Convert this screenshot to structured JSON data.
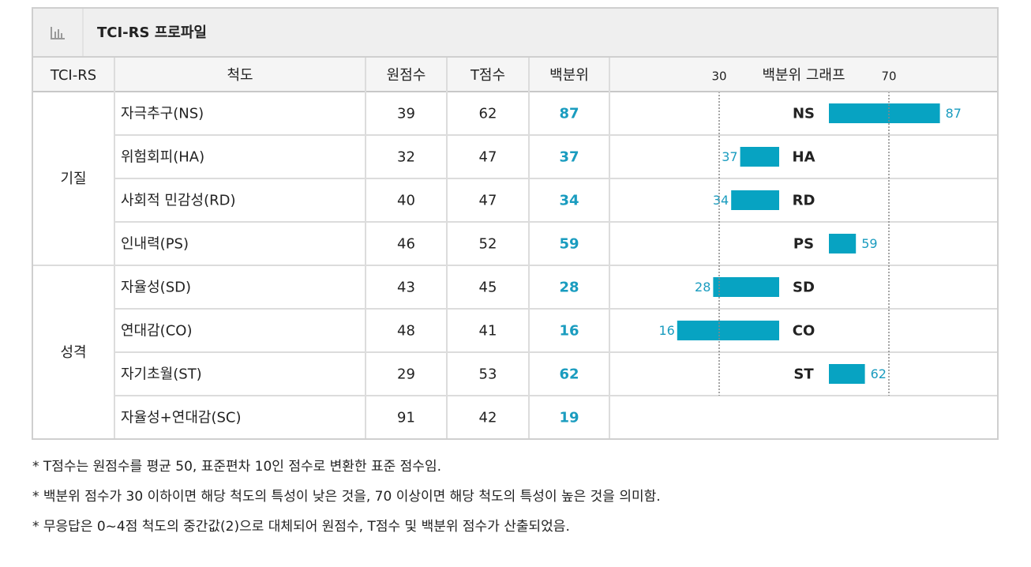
{
  "header": {
    "title": "TCI-RS 프로파일"
  },
  "table": {
    "columns": [
      "TCI-RS",
      "척도",
      "원점수",
      "T점수",
      "백분위",
      "백분위 그래프"
    ],
    "graph_ticks": [
      30,
      70
    ],
    "groups": [
      {
        "name": "기질",
        "rows": [
          {
            "scale": "자극추구(NS)",
            "code": "NS",
            "raw": 39,
            "t": 62,
            "percentile": 87
          },
          {
            "scale": "위험회피(HA)",
            "code": "HA",
            "raw": 32,
            "t": 47,
            "percentile": 37
          },
          {
            "scale": "사회적 민감성(RD)",
            "code": "RD",
            "raw": 40,
            "t": 47,
            "percentile": 34
          },
          {
            "scale": "인내력(PS)",
            "code": "PS",
            "raw": 46,
            "t": 52,
            "percentile": 59
          }
        ]
      },
      {
        "name": "성격",
        "rows": [
          {
            "scale": "자율성(SD)",
            "code": "SD",
            "raw": 43,
            "t": 45,
            "percentile": 28
          },
          {
            "scale": "연대감(CO)",
            "code": "CO",
            "raw": 48,
            "t": 41,
            "percentile": 16
          },
          {
            "scale": "자기초월(ST)",
            "code": "ST",
            "raw": 29,
            "t": 53,
            "percentile": 62
          },
          {
            "scale": "자율성+연대감(SC)",
            "raw": 91,
            "t": 42,
            "percentile": 19
          }
        ]
      }
    ]
  },
  "notes": [
    "* T점수는 원점수를 평균 50, 표준편차 10인 점수로 변환한 표준 점수임.",
    "* 백분위 점수가 30 이하이면 해당 척도의 특성이 낮은 것을, 70 이상이면 해당 척도의 특성이 높은 것을 의미함.",
    "* 무응답은 0~4점 척도의 중간값(2)으로 대체되어 원점수, T점수 및 백분위 점수가 산출되었음."
  ]
}
